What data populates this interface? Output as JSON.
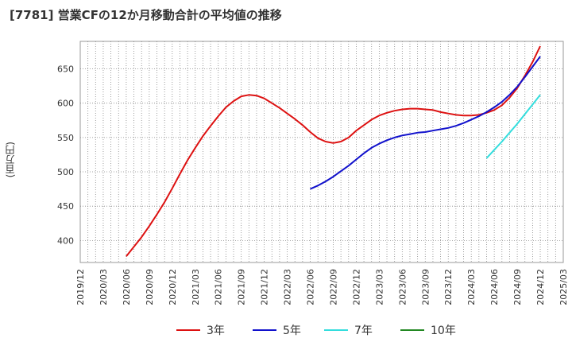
{
  "chart_data": {
    "type": "line",
    "title": "[7781]  営業CFの12か月移動合計の平均値の推移",
    "ylabel": "(百万円)",
    "xlabel": "",
    "ylim": [
      368,
      690
    ],
    "yticks": [
      400,
      450,
      500,
      550,
      600,
      650
    ],
    "xticks": [
      "2019/12",
      "2020/03",
      "2020/06",
      "2020/09",
      "2020/12",
      "2021/03",
      "2021/06",
      "2021/09",
      "2021/12",
      "2022/03",
      "2022/06",
      "2022/09",
      "2022/12",
      "2023/03",
      "2023/06",
      "2023/09",
      "2023/12",
      "2024/03",
      "2024/06",
      "2024/09",
      "2024/12",
      "2025/03"
    ],
    "grid": true,
    "legend_position": "bottom",
    "series": [
      {
        "name": "3年",
        "color": "#dd1111",
        "points": [
          [
            "2020/06",
            377
          ],
          [
            "2020/07",
            391
          ],
          [
            "2020/08",
            405
          ],
          [
            "2020/09",
            421
          ],
          [
            "2020/10",
            438
          ],
          [
            "2020/11",
            456
          ],
          [
            "2020/12",
            476
          ],
          [
            "2021/01",
            497
          ],
          [
            "2021/02",
            517
          ],
          [
            "2021/03",
            535
          ],
          [
            "2021/04",
            552
          ],
          [
            "2021/05",
            567
          ],
          [
            "2021/06",
            581
          ],
          [
            "2021/07",
            594
          ],
          [
            "2021/08",
            603
          ],
          [
            "2021/09",
            610
          ],
          [
            "2021/10",
            612
          ],
          [
            "2021/11",
            611
          ],
          [
            "2021/12",
            607
          ],
          [
            "2022/01",
            600
          ],
          [
            "2022/02",
            593
          ],
          [
            "2022/03",
            585
          ],
          [
            "2022/04",
            577
          ],
          [
            "2022/05",
            568
          ],
          [
            "2022/06",
            558
          ],
          [
            "2022/07",
            549
          ],
          [
            "2022/08",
            544
          ],
          [
            "2022/09",
            542
          ],
          [
            "2022/10",
            544
          ],
          [
            "2022/11",
            550
          ],
          [
            "2022/12",
            560
          ],
          [
            "2023/01",
            568
          ],
          [
            "2023/02",
            576
          ],
          [
            "2023/03",
            582
          ],
          [
            "2023/04",
            586
          ],
          [
            "2023/05",
            589
          ],
          [
            "2023/06",
            591
          ],
          [
            "2023/07",
            592
          ],
          [
            "2023/08",
            592
          ],
          [
            "2023/09",
            591
          ],
          [
            "2023/10",
            590
          ],
          [
            "2023/11",
            587
          ],
          [
            "2023/12",
            585
          ],
          [
            "2024/01",
            583
          ],
          [
            "2024/02",
            582
          ],
          [
            "2024/03",
            582
          ],
          [
            "2024/04",
            583
          ],
          [
            "2024/05",
            586
          ],
          [
            "2024/06",
            590
          ],
          [
            "2024/07",
            597
          ],
          [
            "2024/08",
            608
          ],
          [
            "2024/09",
            622
          ],
          [
            "2024/10",
            640
          ],
          [
            "2024/11",
            660
          ],
          [
            "2024/12",
            683
          ]
        ]
      },
      {
        "name": "5年",
        "color": "#1111cc",
        "points": [
          [
            "2022/06",
            475
          ],
          [
            "2022/07",
            480
          ],
          [
            "2022/08",
            486
          ],
          [
            "2022/09",
            493
          ],
          [
            "2022/10",
            501
          ],
          [
            "2022/11",
            509
          ],
          [
            "2022/12",
            518
          ],
          [
            "2023/01",
            527
          ],
          [
            "2023/02",
            535
          ],
          [
            "2023/03",
            541
          ],
          [
            "2023/04",
            546
          ],
          [
            "2023/05",
            550
          ],
          [
            "2023/06",
            553
          ],
          [
            "2023/07",
            555
          ],
          [
            "2023/08",
            557
          ],
          [
            "2023/09",
            558
          ],
          [
            "2023/10",
            560
          ],
          [
            "2023/11",
            562
          ],
          [
            "2023/12",
            564
          ],
          [
            "2024/01",
            567
          ],
          [
            "2024/02",
            571
          ],
          [
            "2024/03",
            576
          ],
          [
            "2024/04",
            581
          ],
          [
            "2024/05",
            587
          ],
          [
            "2024/06",
            594
          ],
          [
            "2024/07",
            602
          ],
          [
            "2024/08",
            612
          ],
          [
            "2024/09",
            624
          ],
          [
            "2024/10",
            638
          ],
          [
            "2024/11",
            653
          ],
          [
            "2024/12",
            668
          ]
        ]
      },
      {
        "name": "7年",
        "color": "#33dddd",
        "points": [
          [
            "2024/05",
            520
          ],
          [
            "2024/06",
            532
          ],
          [
            "2024/07",
            544
          ],
          [
            "2024/08",
            557
          ],
          [
            "2024/09",
            570
          ],
          [
            "2024/10",
            584
          ],
          [
            "2024/11",
            598
          ],
          [
            "2024/12",
            612
          ]
        ]
      },
      {
        "name": "10年",
        "color": "#228822",
        "points": []
      }
    ]
  }
}
